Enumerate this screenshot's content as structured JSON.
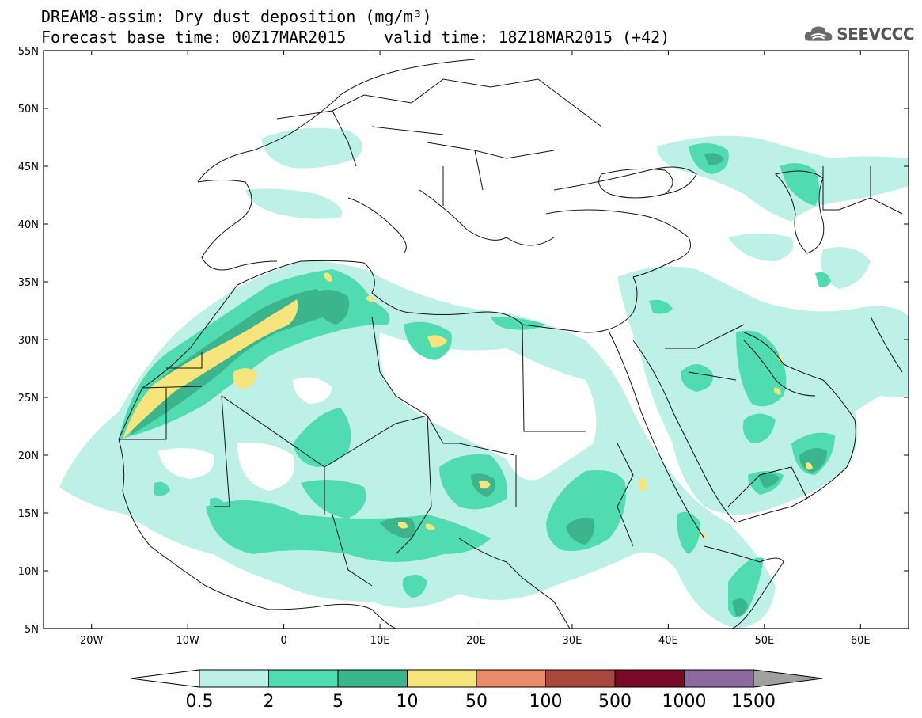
{
  "header": {
    "title_line1": "DREAM8-assim: Dry dust deposition (mg/m³)",
    "title_line2": "Forecast base time: 00Z17MAR2015",
    "valid_time": "valid time: 18Z18MAR2015 (+42)",
    "logo_text": "SEEVCCC",
    "logo_icon": "cloud-icon"
  },
  "map": {
    "lon_labels": [
      "20W",
      "10W",
      "0",
      "10E",
      "20E",
      "30E",
      "40E",
      "50E",
      "60E"
    ],
    "lat_labels": [
      "55N",
      "50N",
      "45N",
      "40N",
      "35N",
      "30N",
      "25N",
      "20N",
      "15N",
      "10N",
      "5N"
    ],
    "lon_range": [
      -25,
      65
    ],
    "lat_range": [
      5,
      55
    ]
  },
  "legend": {
    "labels": [
      "0.5",
      "2",
      "5",
      "10",
      "50",
      "100",
      "500",
      "1000",
      "1500"
    ],
    "colors": [
      "#bdf0e6",
      "#50dcb0",
      "#3cb48c",
      "#f6e47c",
      "#e98a68",
      "#a8483c",
      "#780a28",
      "#8c6aa0",
      "#a0a0a0"
    ]
  }
}
